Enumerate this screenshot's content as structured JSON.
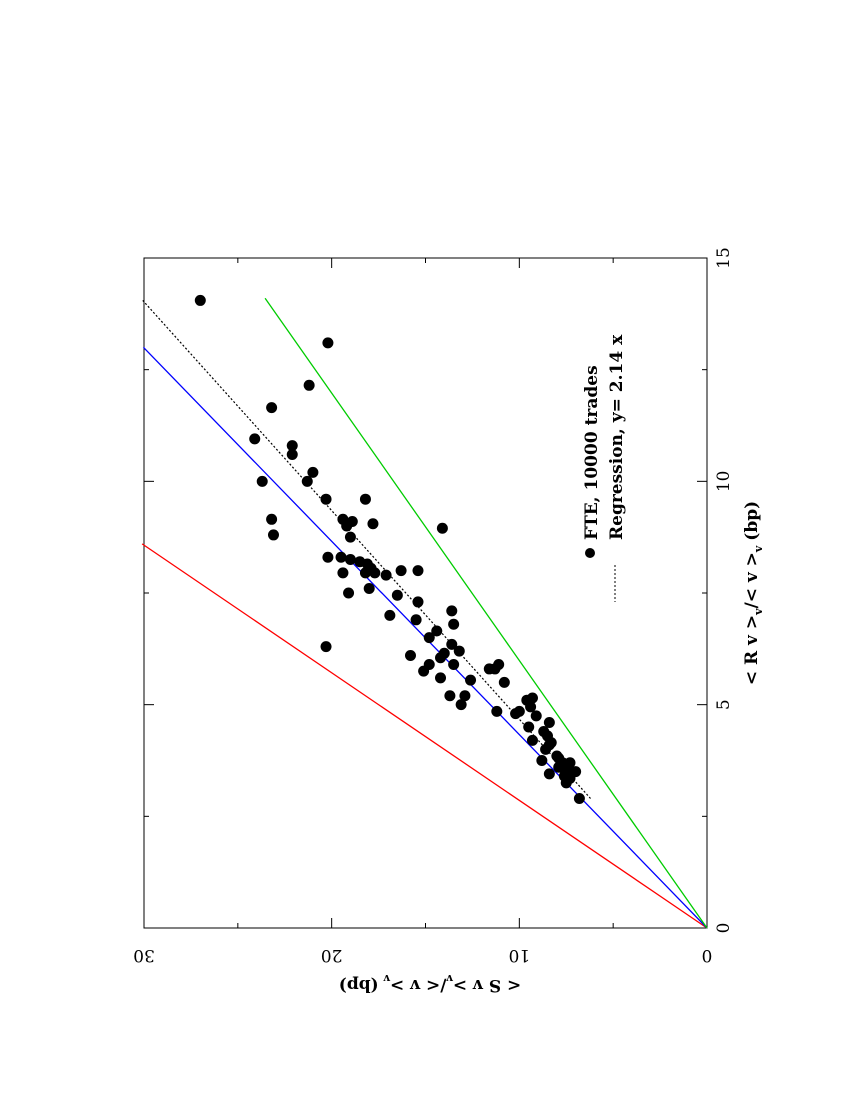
{
  "chart_data": {
    "type": "scatter",
    "orientation": "rotated 90 degrees counter-clockwise on the page",
    "x_axis": {
      "label": "< R v >",
      "label_rest": "/< v >",
      "label_sub": "v",
      "label_units": "(bp)",
      "range": [
        0,
        15
      ],
      "ticks": [
        0,
        5,
        10,
        15
      ]
    },
    "y_axis": {
      "label": "< S v >",
      "label_rest": "/< v >",
      "label_sub": "v",
      "label_units": "(bp)",
      "range": [
        0,
        30
      ],
      "ticks": [
        0,
        10,
        20,
        30
      ]
    },
    "grid": false,
    "legend": {
      "placement": "bottom-right",
      "entries": [
        {
          "label": "FTE, 10000 trades",
          "marker": "filled-circle"
        },
        {
          "label": "Regression, y= 2.14 x",
          "marker": "dotted-line"
        }
      ]
    },
    "reference_lines": [
      {
        "color": "#ff0000",
        "slope": 3.5,
        "x_end": 8.6
      },
      {
        "color": "#0000ff",
        "slope": 2.31,
        "x_end": 13.0
      },
      {
        "color": "#00cc00",
        "slope": 1.67,
        "x_end": 14.1
      }
    ],
    "regression": {
      "slope": 2.14,
      "x_range": [
        2.9,
        14.05
      ],
      "color": "#000000"
    },
    "points": [
      [
        14.05,
        27.0
      ],
      [
        13.1,
        20.2
      ],
      [
        12.15,
        21.2
      ],
      [
        11.65,
        23.2
      ],
      [
        10.95,
        24.1
      ],
      [
        10.8,
        22.1
      ],
      [
        10.6,
        22.1
      ],
      [
        10.2,
        21.0
      ],
      [
        10.0,
        23.7
      ],
      [
        10.0,
        21.3
      ],
      [
        9.6,
        20.3
      ],
      [
        9.6,
        18.2
      ],
      [
        9.15,
        19.4
      ],
      [
        9.15,
        23.2
      ],
      [
        9.1,
        18.9
      ],
      [
        9.05,
        17.8
      ],
      [
        9.0,
        19.2
      ],
      [
        8.95,
        14.1
      ],
      [
        8.8,
        23.1
      ],
      [
        8.75,
        19.0
      ],
      [
        8.3,
        20.2
      ],
      [
        8.3,
        19.5
      ],
      [
        8.25,
        19.0
      ],
      [
        8.2,
        18.5
      ],
      [
        8.15,
        18.1
      ],
      [
        8.05,
        17.9
      ],
      [
        8.0,
        16.3
      ],
      [
        8.0,
        15.4
      ],
      [
        7.95,
        18.2
      ],
      [
        7.95,
        17.7
      ],
      [
        7.95,
        19.4
      ],
      [
        7.9,
        17.1
      ],
      [
        7.6,
        18.0
      ],
      [
        7.5,
        19.1
      ],
      [
        7.45,
        16.5
      ],
      [
        7.3,
        15.4
      ],
      [
        7.1,
        13.6
      ],
      [
        7.0,
        16.9
      ],
      [
        6.9,
        15.5
      ],
      [
        6.8,
        13.5
      ],
      [
        6.65,
        14.4
      ],
      [
        6.5,
        14.8
      ],
      [
        6.35,
        13.6
      ],
      [
        6.3,
        20.3
      ],
      [
        6.2,
        13.2
      ],
      [
        6.15,
        14.0
      ],
      [
        6.1,
        15.8
      ],
      [
        6.05,
        14.2
      ],
      [
        5.9,
        14.8
      ],
      [
        5.9,
        13.5
      ],
      [
        5.9,
        11.1
      ],
      [
        5.8,
        11.3
      ],
      [
        5.8,
        11.6
      ],
      [
        5.75,
        15.1
      ],
      [
        5.6,
        14.2
      ],
      [
        5.55,
        12.6
      ],
      [
        5.5,
        10.8
      ],
      [
        5.2,
        12.9
      ],
      [
        5.2,
        13.7
      ],
      [
        5.15,
        9.3
      ],
      [
        5.1,
        9.6
      ],
      [
        5.0,
        13.1
      ],
      [
        4.95,
        9.4
      ],
      [
        4.85,
        10.0
      ],
      [
        4.85,
        11.2
      ],
      [
        4.8,
        10.2
      ],
      [
        4.75,
        9.1
      ],
      [
        4.6,
        8.4
      ],
      [
        4.5,
        9.5
      ],
      [
        4.4,
        8.7
      ],
      [
        4.3,
        8.5
      ],
      [
        4.2,
        9.3
      ],
      [
        4.15,
        8.3
      ],
      [
        4.1,
        8.4
      ],
      [
        4.0,
        8.6
      ],
      [
        3.85,
        8.0
      ],
      [
        3.8,
        7.9
      ],
      [
        3.75,
        8.8
      ],
      [
        3.7,
        7.7
      ],
      [
        3.7,
        7.3
      ],
      [
        3.6,
        7.9
      ],
      [
        3.55,
        7.6
      ],
      [
        3.5,
        7.4
      ],
      [
        3.5,
        7.0
      ],
      [
        3.45,
        8.4
      ],
      [
        3.4,
        7.6
      ],
      [
        3.35,
        7.3
      ],
      [
        3.25,
        7.5
      ],
      [
        2.9,
        6.8
      ]
    ]
  }
}
